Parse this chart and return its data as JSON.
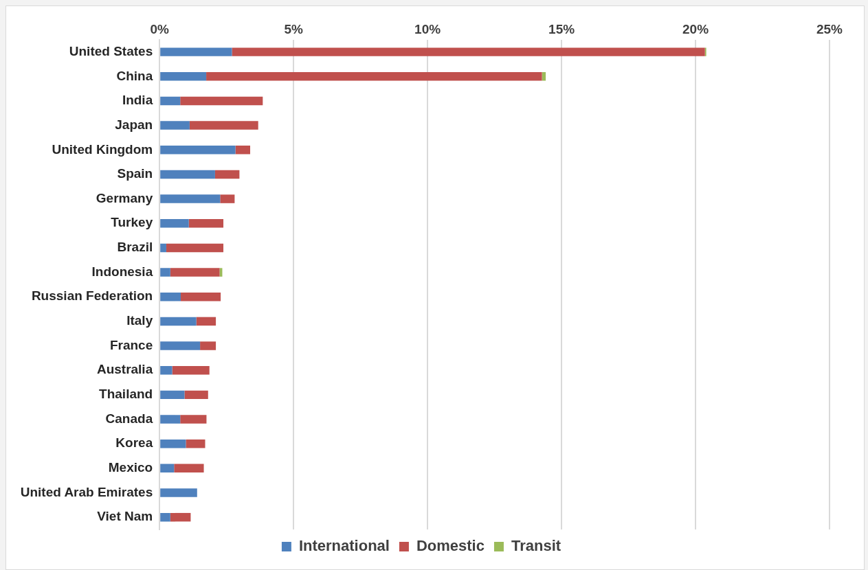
{
  "chart_data": {
    "type": "bar",
    "orientation": "horizontal",
    "stacked": true,
    "categories": [
      "United States",
      "China",
      "India",
      "Japan",
      "United Kingdom",
      "Spain",
      "Germany",
      "Turkey",
      "Brazil",
      "Indonesia",
      "Russian Federation",
      "Italy",
      "France",
      "Australia",
      "Thailand",
      "Canada",
      "Korea",
      "Mexico",
      "United Arab Emirates",
      "Viet Nam"
    ],
    "series": [
      {
        "name": "International",
        "color": "#4f81bd",
        "values": [
          2.7,
          1.74,
          0.77,
          1.12,
          2.83,
          2.07,
          2.26,
          1.09,
          0.25,
          0.4,
          0.79,
          1.37,
          1.51,
          0.47,
          0.93,
          0.77,
          0.98,
          0.54,
          1.4,
          0.4
        ]
      },
      {
        "name": "Domestic",
        "color": "#c0504d",
        "values": [
          17.65,
          12.53,
          3.08,
          2.56,
          0.55,
          0.91,
          0.54,
          1.29,
          2.13,
          1.84,
          1.49,
          0.73,
          0.59,
          1.39,
          0.88,
          0.98,
          0.72,
          1.11,
          0,
          0.76
        ]
      },
      {
        "name": "Transit",
        "color": "#9bbb59",
        "values": [
          0.05,
          0.14,
          0,
          0,
          0,
          0,
          0,
          0,
          0,
          0.1,
          0,
          0,
          0,
          0,
          0,
          0,
          0,
          0,
          0,
          0
        ]
      }
    ],
    "xlim": [
      0,
      25
    ],
    "xticks": [
      {
        "value": 0,
        "label": "0%"
      },
      {
        "value": 5,
        "label": "5%"
      },
      {
        "value": 10,
        "label": "10%"
      },
      {
        "value": 15,
        "label": "15%"
      },
      {
        "value": 20,
        "label": "20%"
      },
      {
        "value": 25,
        "label": "25%"
      }
    ],
    "grid": "x",
    "legend": "bottom"
  }
}
